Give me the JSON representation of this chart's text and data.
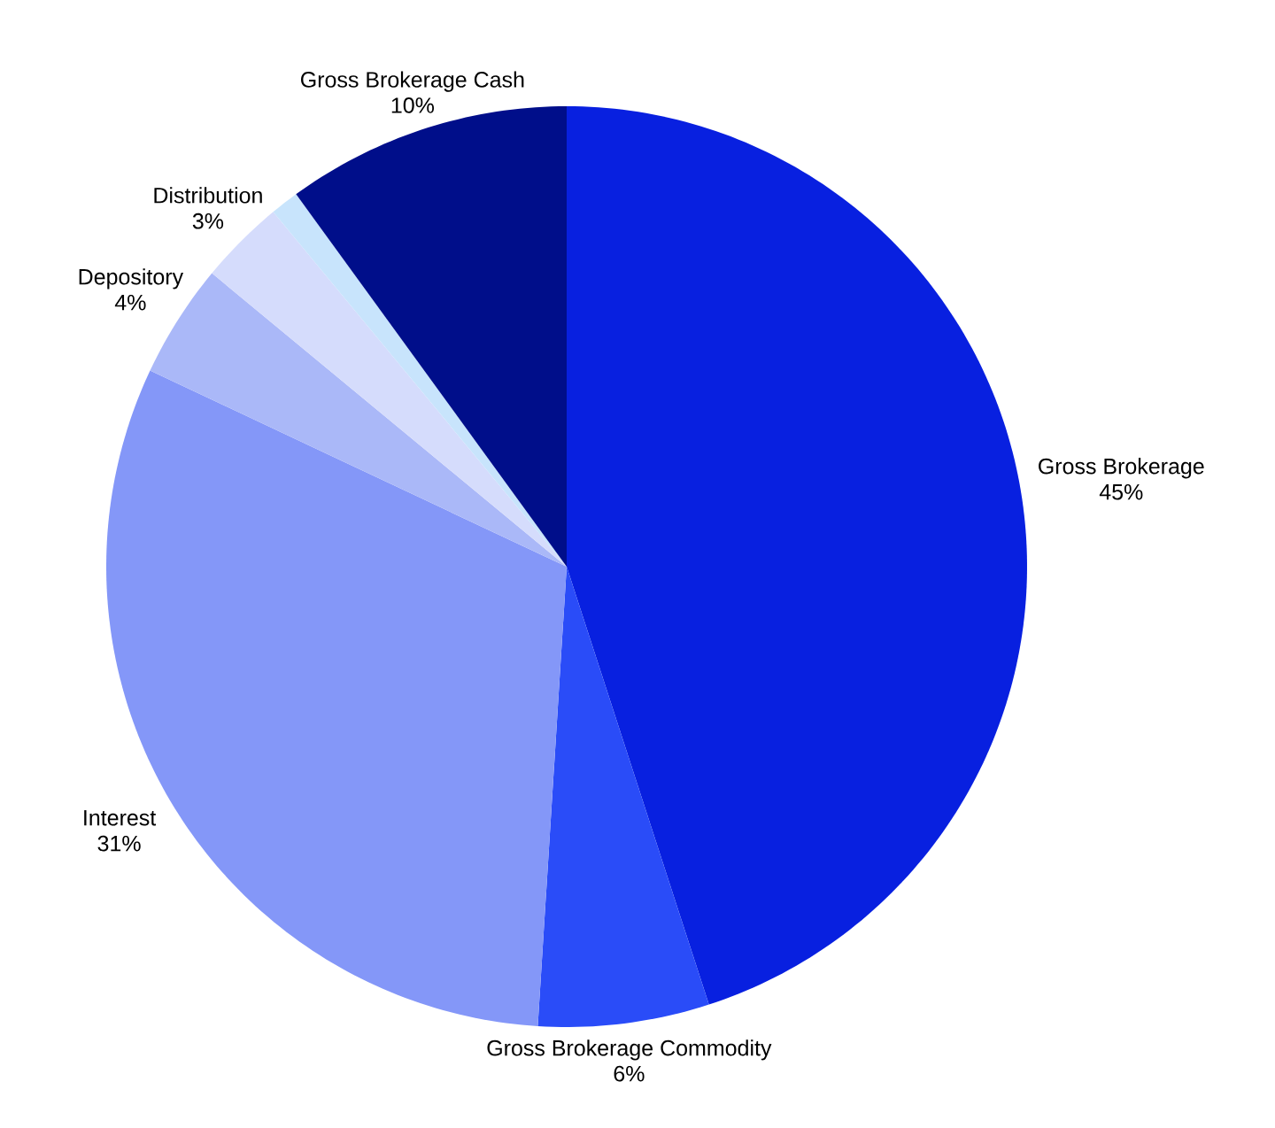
{
  "chart_data": {
    "type": "pie",
    "categories": [
      "Gross Brokerage",
      "Gross Brokerage Commodity",
      "Interest",
      "Depository",
      "Distribution",
      null,
      "Gross Brokerage Cash"
    ],
    "values": [
      45,
      6,
      31,
      4,
      3,
      1,
      10
    ],
    "value_labels": [
      "45%",
      "6%",
      "31%",
      "4%",
      "3%",
      null,
      "10%"
    ],
    "colors": [
      "#0820e0",
      "#2a4cf8",
      "#8497f8",
      "#aab8f8",
      "#d5dcfc",
      "#c8e4fc",
      "#000e8a"
    ]
  }
}
